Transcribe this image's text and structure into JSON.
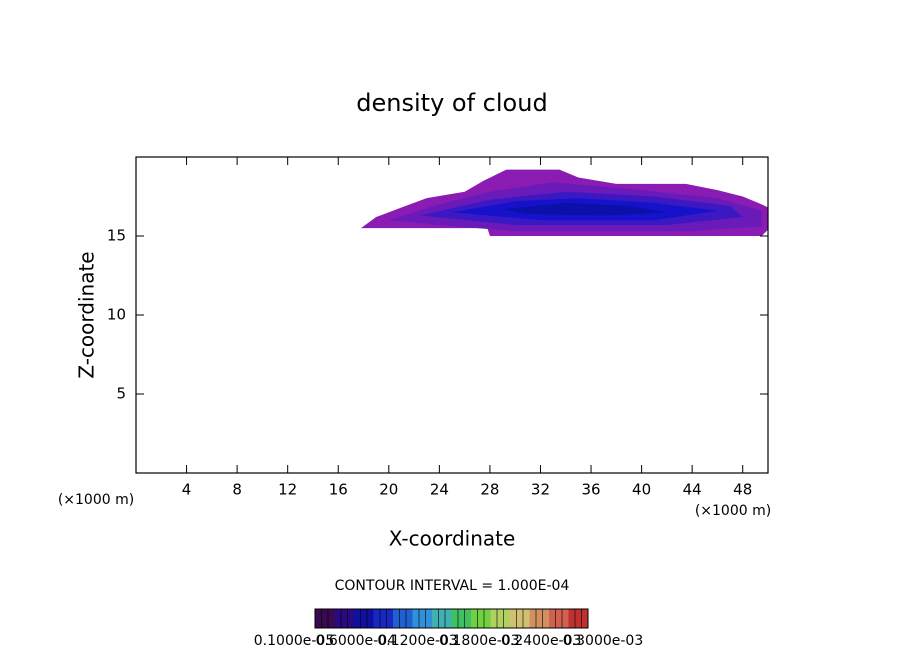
{
  "chart_data": {
    "type": "contour",
    "title": "density of cloud",
    "x_label": "X-coordinate",
    "y_label": "Z-coordinate",
    "x_unit": "(×1000 m)",
    "x_unit_right": "(×1000 m)",
    "xlim": [
      0,
      50
    ],
    "ylim": [
      0,
      20
    ],
    "xticks": [
      4,
      8,
      12,
      16,
      20,
      24,
      28,
      32,
      36,
      40,
      44,
      48
    ],
    "yticks": [
      5,
      10,
      15
    ],
    "contours": [
      {
        "color": "#8a1cb4",
        "points": [
          [
            17.8,
            15.5
          ],
          [
            19,
            16.2
          ],
          [
            21,
            16.8
          ],
          [
            23,
            17.4
          ],
          [
            26,
            17.8
          ],
          [
            27.5,
            18.5
          ],
          [
            29.3,
            19.2
          ],
          [
            33.5,
            19.2
          ],
          [
            35,
            18.7
          ],
          [
            38,
            18.3
          ],
          [
            43.5,
            18.3
          ],
          [
            46,
            17.9
          ],
          [
            48,
            17.5
          ],
          [
            49.5,
            17
          ],
          [
            50,
            16.8
          ],
          [
            50,
            15.4
          ],
          [
            49.5,
            15
          ],
          [
            28,
            15
          ],
          [
            27.8,
            15.5
          ]
        ]
      },
      {
        "color": "#6a1ab8",
        "points": [
          [
            20,
            16
          ],
          [
            24,
            17
          ],
          [
            28,
            17.8
          ],
          [
            33,
            18.4
          ],
          [
            40,
            17.9
          ],
          [
            46,
            17.4
          ],
          [
            49.5,
            16.6
          ],
          [
            49.5,
            15.6
          ],
          [
            44,
            15.3
          ],
          [
            30,
            15.3
          ],
          [
            24,
            15.7
          ]
        ]
      },
      {
        "color": "#3c18c2",
        "points": [
          [
            22.5,
            16.3
          ],
          [
            28,
            17.3
          ],
          [
            34,
            17.8
          ],
          [
            41,
            17.5
          ],
          [
            47,
            16.9
          ],
          [
            48,
            16.2
          ],
          [
            42,
            15.7
          ],
          [
            30,
            15.7
          ]
        ]
      },
      {
        "color": "#1612cc",
        "points": [
          [
            25,
            16.5
          ],
          [
            30,
            17.2
          ],
          [
            35,
            17.4
          ],
          [
            41,
            17.1
          ],
          [
            46,
            16.6
          ],
          [
            41,
            16
          ],
          [
            32,
            16
          ]
        ]
      },
      {
        "color": "#0a10a8",
        "points": [
          [
            29,
            16.7
          ],
          [
            34,
            17.1
          ],
          [
            39,
            16.9
          ],
          [
            42,
            16.5
          ],
          [
            37,
            16.3
          ],
          [
            31,
            16.4
          ]
        ]
      }
    ],
    "contour_interval": "CONTOUR INTERVAL = 1.000E-04",
    "colorbar": {
      "colors": [
        "#3a0a50",
        "#2a0a80",
        "#1010a0",
        "#1828c0",
        "#2060d0",
        "#3090d8",
        "#40b0b0",
        "#40c060",
        "#70d040",
        "#b0d060",
        "#d0c070",
        "#d09060",
        "#d06050",
        "#c03030"
      ],
      "labels": [
        "0.1000e-05",
        "0.6000e-04",
        "0.1200e-03",
        "0.1800e-03",
        "0.2400e-03",
        "0.3000e-03"
      ]
    }
  }
}
